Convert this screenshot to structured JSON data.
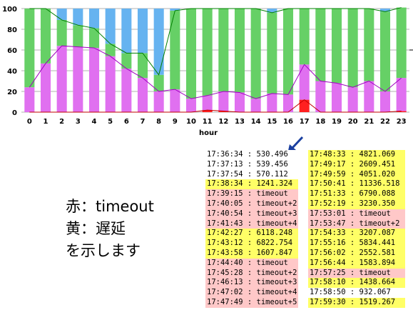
{
  "chart_data": {
    "type": "bar",
    "stacked": true,
    "xlabel": "hour",
    "ylabel": "",
    "ylim": [
      0,
      100
    ],
    "yticks": [
      0,
      20,
      40,
      60,
      80,
      100
    ],
    "categories": [
      "0",
      "1",
      "2",
      "3",
      "4",
      "5",
      "6",
      "7",
      "8",
      "9",
      "10",
      "11",
      "12",
      "13",
      "14",
      "15",
      "16",
      "17",
      "18",
      "19",
      "20",
      "21",
      "22",
      "23"
    ],
    "series": [
      {
        "color": "#ff2020",
        "values": [
          0,
          0,
          0,
          0,
          0,
          0,
          0,
          0,
          0,
          0,
          0,
          2,
          1,
          0,
          0,
          0,
          0,
          12,
          0,
          0,
          0,
          0,
          0,
          1
        ]
      },
      {
        "color": "#e070f0",
        "values": [
          24,
          47,
          64,
          63,
          62,
          54,
          42,
          33,
          20,
          22,
          13,
          14,
          19,
          19,
          13,
          18,
          17,
          34,
          30,
          28,
          24,
          30,
          20,
          32
        ]
      },
      {
        "color": "#66d066",
        "values": [
          76,
          53,
          25,
          21,
          19,
          12,
          15,
          24,
          16,
          76,
          87,
          84,
          80,
          81,
          87,
          78,
          83,
          54,
          70,
          72,
          76,
          70,
          77,
          68
        ]
      },
      {
        "color": "#66b3f0",
        "values": [
          0,
          0,
          11,
          16,
          19,
          34,
          43,
          43,
          64,
          2,
          0,
          0,
          0,
          0,
          0,
          4,
          0,
          0,
          0,
          0,
          0,
          0,
          3,
          0
        ]
      }
    ]
  },
  "legend_text": {
    "line1": "赤：timeout",
    "line2": "黄：遅延",
    "line3": "を示します"
  },
  "table": {
    "left": [
      {
        "text": "17:36:34 : 530.496",
        "color": "white"
      },
      {
        "text": "17:37:13 : 539.456",
        "color": "white"
      },
      {
        "text": "17:37:54 : 570.112",
        "color": "white"
      },
      {
        "text": "17:38:34 : 1241.324",
        "color": "yellow"
      },
      {
        "text": "17:39:15 : timeout",
        "color": "pink"
      },
      {
        "text": "17:40:05 : timeout+2",
        "color": "pink"
      },
      {
        "text": "17:40:54 : timeout+3",
        "color": "pink"
      },
      {
        "text": "17:41:43 : timeout+4",
        "color": "pink"
      },
      {
        "text": "17:42:27 : 6118.248",
        "color": "yellow"
      },
      {
        "text": "17:43:12 : 6822.754",
        "color": "yellow"
      },
      {
        "text": "17:43:58 : 1607.847",
        "color": "yellow"
      },
      {
        "text": "17:44:40 : timeout",
        "color": "pink"
      },
      {
        "text": "17:45:28 : timeout+2",
        "color": "pink"
      },
      {
        "text": "17:46:13 : timeout+3",
        "color": "pink"
      },
      {
        "text": "17:47:02 : timeout+4",
        "color": "pink"
      },
      {
        "text": "17:47:49 : timeout+5",
        "color": "pink"
      }
    ],
    "right": [
      {
        "text": "17:48:33 : 4821.069",
        "color": "yellow"
      },
      {
        "text": "17:49:17 : 2609.451",
        "color": "yellow"
      },
      {
        "text": "17:49:59 : 4051.020",
        "color": "yellow"
      },
      {
        "text": "17:50:41 : 11336.518",
        "color": "yellow"
      },
      {
        "text": "17:51:33 : 6790.088",
        "color": "yellow"
      },
      {
        "text": "17:52:19 : 3230.350",
        "color": "yellow"
      },
      {
        "text": "17:53:01 : timeout",
        "color": "pink"
      },
      {
        "text": "17:53:47 : timeout+2",
        "color": "pink"
      },
      {
        "text": "17:54:33 : 3207.087",
        "color": "yellow"
      },
      {
        "text": "17:55:16 : 5834.441",
        "color": "yellow"
      },
      {
        "text": "17:56:02 : 2552.581",
        "color": "yellow"
      },
      {
        "text": "17:56:44 : 1583.894",
        "color": "yellow"
      },
      {
        "text": "17:57:25 : timeout",
        "color": "pink"
      },
      {
        "text": "17:58:10 : 1438.664",
        "color": "yellow"
      },
      {
        "text": "17:58:50 : 932.067",
        "color": "white"
      },
      {
        "text": "17:59:30 : 1519.267",
        "color": "yellow"
      }
    ]
  }
}
